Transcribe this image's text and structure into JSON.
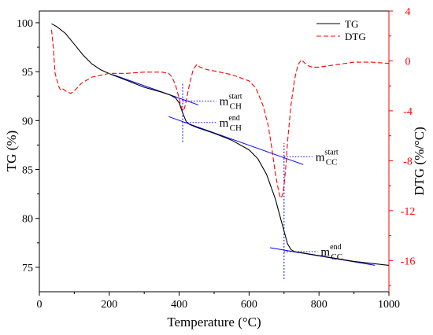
{
  "chart_data": {
    "type": "line",
    "xlabel": "Temperature  (°C)",
    "ylabel_left": "TG  (%)",
    "ylabel_right": "DTG  (%/°C)",
    "xlim": [
      0,
      1000
    ],
    "ylim_left": [
      72.5,
      101.2
    ],
    "ylim_right": [
      -18.5,
      4
    ],
    "xticks": [
      "0",
      "200",
      "400",
      "600",
      "800",
      "1000"
    ],
    "yticks_left": [
      "75",
      "80",
      "85",
      "90",
      "95",
      "100"
    ],
    "yticks_right": [
      "4",
      "0",
      "-4",
      "-8",
      "-12",
      "-16"
    ],
    "colors": {
      "tg": "#000000",
      "dtg": "#ff0000",
      "guide": "#0000ff",
      "axis_right": "#ff0000"
    },
    "legend": {
      "position": "top-right",
      "entries": [
        "TG",
        "DTG"
      ]
    },
    "series": [
      {
        "name": "TG",
        "axis": "left",
        "style": "solid",
        "x": [
          35,
          50,
          75,
          100,
          125,
          150,
          175,
          200,
          250,
          300,
          350,
          375,
          390,
          400,
          410,
          420,
          430,
          450,
          500,
          550,
          600,
          625,
          650,
          675,
          690,
          700,
          710,
          720,
          730,
          800,
          900,
          1000
        ],
        "y": [
          99.9,
          99.6,
          98.9,
          97.8,
          96.7,
          95.8,
          95.2,
          94.8,
          94.1,
          93.4,
          92.9,
          92.6,
          92.3,
          91.8,
          90.8,
          89.9,
          89.6,
          89.3,
          88.7,
          88.0,
          87.0,
          86.1,
          84.5,
          82.0,
          80.0,
          78.7,
          77.4,
          76.8,
          76.6,
          76.2,
          75.6,
          75.2
        ]
      },
      {
        "name": "DTG",
        "axis": "right",
        "style": "dashed",
        "x": [
          35,
          40,
          45,
          50,
          55,
          60,
          65,
          70,
          75,
          80,
          90,
          100,
          120,
          150,
          200,
          250,
          300,
          350,
          370,
          380,
          390,
          400,
          405,
          410,
          415,
          420,
          430,
          440,
          450,
          460,
          480,
          500,
          550,
          600,
          620,
          640,
          655,
          665,
          675,
          685,
          690,
          695,
          700,
          705,
          710,
          720,
          730,
          740,
          750,
          760,
          770,
          780,
          800,
          850,
          900,
          950,
          1000
        ],
        "y": [
          2.5,
          1.0,
          -1.0,
          -1.5,
          -2.0,
          -2.3,
          -2.2,
          -2.3,
          -2.4,
          -2.5,
          -2.6,
          -2.4,
          -1.8,
          -1.3,
          -1.0,
          -1.0,
          -0.9,
          -0.9,
          -1.0,
          -1.3,
          -2.0,
          -3.0,
          -3.6,
          -4.0,
          -3.8,
          -3.2,
          -1.8,
          -0.7,
          -0.3,
          -0.5,
          -0.7,
          -0.8,
          -1.1,
          -1.6,
          -2.2,
          -3.6,
          -5.2,
          -7.0,
          -9.0,
          -10.5,
          -11.0,
          -10.8,
          -10.0,
          -8.5,
          -6.5,
          -3.5,
          -1.5,
          -0.3,
          0.1,
          -0.2,
          -0.4,
          -0.5,
          -0.5,
          -0.3,
          -0.1,
          -0.1,
          -0.2
        ]
      }
    ],
    "tangent_lines": [
      {
        "name": "tangent-ch-before",
        "x": [
          210,
          455
        ],
        "y": [
          94.7,
          91.6
        ]
      },
      {
        "name": "tangent-ch-after",
        "x": [
          370,
          755
        ],
        "y": [
          90.4,
          85.5
        ]
      },
      {
        "name": "tangent-cc-after",
        "x": [
          660,
          960
        ],
        "y": [
          77.0,
          75.2
        ]
      }
    ],
    "markers": [
      {
        "name": "marker-ch",
        "x": 410,
        "y1": 87.8,
        "y2": 93.9
      },
      {
        "name": "marker-cc",
        "x": 700,
        "y1": 73.8,
        "y2": 87.7
      }
    ],
    "annotations": [
      {
        "name": "label-m-ch-start",
        "base": "m",
        "sub": "CH",
        "sup": "start",
        "leader_from": [
          410,
          92.0
        ],
        "text_at": [
          515,
          92.0
        ]
      },
      {
        "name": "label-m-ch-end",
        "base": "m",
        "sub": "CH",
        "sup": "end",
        "leader_from": [
          415,
          89.8
        ],
        "text_at": [
          515,
          89.8
        ]
      },
      {
        "name": "label-m-cc-start",
        "base": "m",
        "sub": "CC",
        "sup": "start",
        "leader_from": [
          700,
          86.3
        ],
        "text_at": [
          790,
          86.3
        ]
      },
      {
        "name": "label-m-cc-end",
        "base": "m",
        "sub": "CC",
        "sup": "end",
        "leader_from": [
          700,
          76.6
        ],
        "text_at": [
          805,
          76.6
        ]
      }
    ]
  }
}
